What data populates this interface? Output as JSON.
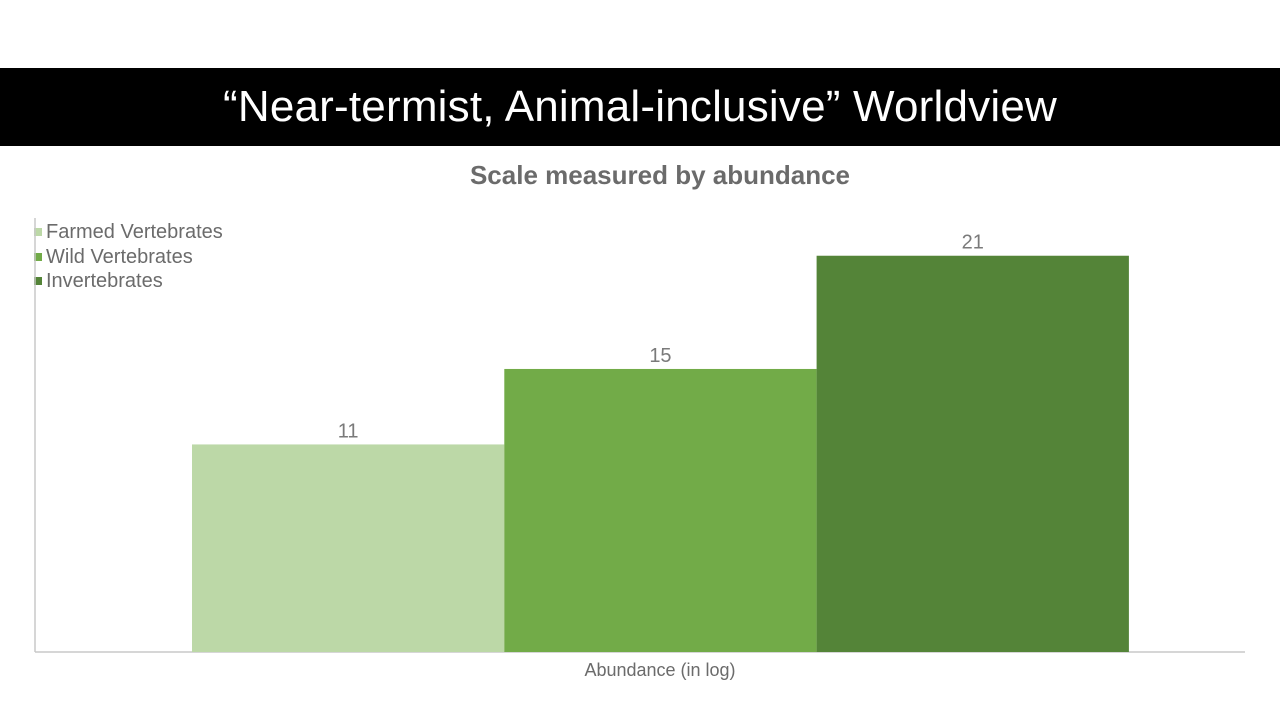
{
  "slide": {
    "title": "“Near-termist, Animal-inclusive” Worldview"
  },
  "chart_data": {
    "type": "bar",
    "title": "Scale measured by abundance",
    "xlabel": "Abundance (in log)",
    "ylabel": "",
    "ylim": [
      0,
      23
    ],
    "grid": false,
    "legend_position": "top-left",
    "series": [
      {
        "name": "Farmed Vertebrates",
        "values": [
          11
        ],
        "color": "#bcd8a7"
      },
      {
        "name": "Wild Vertebrates",
        "values": [
          15
        ],
        "color": "#72ab48"
      },
      {
        "name": "Invertebrates",
        "values": [
          21
        ],
        "color": "#548438"
      }
    ],
    "data_labels": [
      "11",
      "15",
      "21"
    ]
  }
}
